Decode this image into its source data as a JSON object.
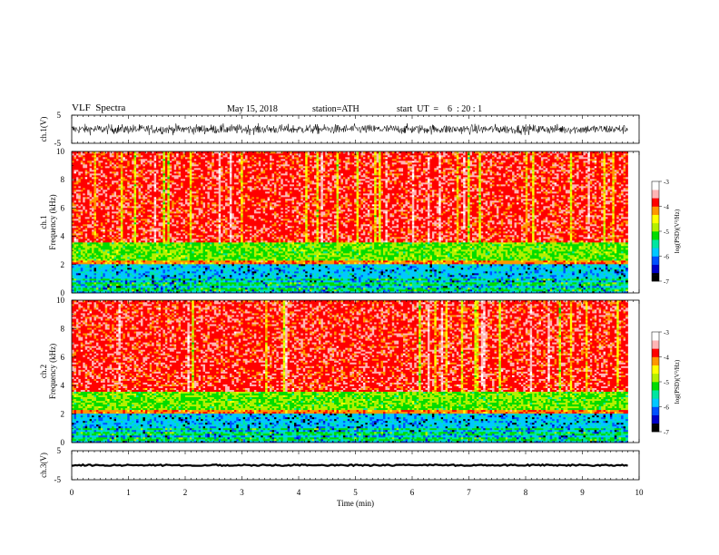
{
  "header": {
    "title": "VLF  Spectra",
    "date": "May 15, 2018",
    "station": "station=ATH",
    "start": "start  UT  =    6  : 20 : 1"
  },
  "chart_data": {
    "type": "heatmap",
    "x": {
      "label": "Time  (min)",
      "range": [
        0,
        10
      ],
      "ticks": [
        "0",
        "1",
        "2",
        "3",
        "4",
        "5",
        "6",
        "7",
        "8",
        "9",
        "10"
      ],
      "data_end": 9.8
    },
    "waveform_panels": [
      {
        "label": "ch.1(V)",
        "yrange": [
          -5,
          5
        ],
        "ticks": [
          "5",
          "-5"
        ],
        "amplitude": 3.5
      },
      {
        "label": "ch.3(V)",
        "yrange": [
          -5,
          5
        ],
        "ticks": [
          "5",
          "-5"
        ],
        "amplitude": 0.5
      }
    ],
    "spectrogram_panels": [
      {
        "label": "ch.1",
        "ylabel": "Frequency  (kHz)",
        "yrange": [
          0,
          10
        ],
        "ticks": [
          "0",
          "2",
          "4",
          "6",
          "8",
          "10"
        ],
        "colorbar": {
          "label": "log(PSD)(V²/Hz)",
          "range": [
            -7,
            -3
          ],
          "ticks": [
            "-3",
            "-4",
            "-5",
            "-6",
            "-7"
          ]
        }
      },
      {
        "label": "ch.2",
        "ylabel": "Frequency  (kHz)",
        "yrange": [
          0,
          10
        ],
        "ticks": [
          "0",
          "2",
          "4",
          "6",
          "8",
          "10"
        ],
        "colorbar": {
          "label": "log(PSD)(V²/Hz)",
          "range": [
            -7,
            -3
          ],
          "ticks": [
            "-3",
            "-4",
            "-5",
            "-6",
            "-7"
          ]
        }
      }
    ],
    "spectral_structure": [
      {
        "freq_khz": [
          0.0,
          1.0
        ],
        "log_psd": -5.3,
        "note": "green/cyan with dark blue lines"
      },
      {
        "freq_khz": [
          1.0,
          2.0
        ],
        "log_psd": -5.8,
        "note": "cyan/blue band"
      },
      {
        "freq_khz": [
          2.0,
          2.3
        ],
        "log_psd": -4.1,
        "note": "orange line"
      },
      {
        "freq_khz": [
          2.3,
          3.6
        ],
        "log_psd": -5.0,
        "note": "green band"
      },
      {
        "freq_khz": [
          3.6,
          10.0
        ],
        "log_psd": -3.8,
        "note": "red/yellow"
      }
    ],
    "colors": {
      "colormap": [
        "#000000",
        "#0000c8",
        "#0050ff",
        "#00c8ff",
        "#00e6a0",
        "#00dc00",
        "#b4f000",
        "#ffff00",
        "#ff9600",
        "#ff0000",
        "#ffb4b4",
        "#ffffff"
      ],
      "waveform": "#000000"
    }
  }
}
